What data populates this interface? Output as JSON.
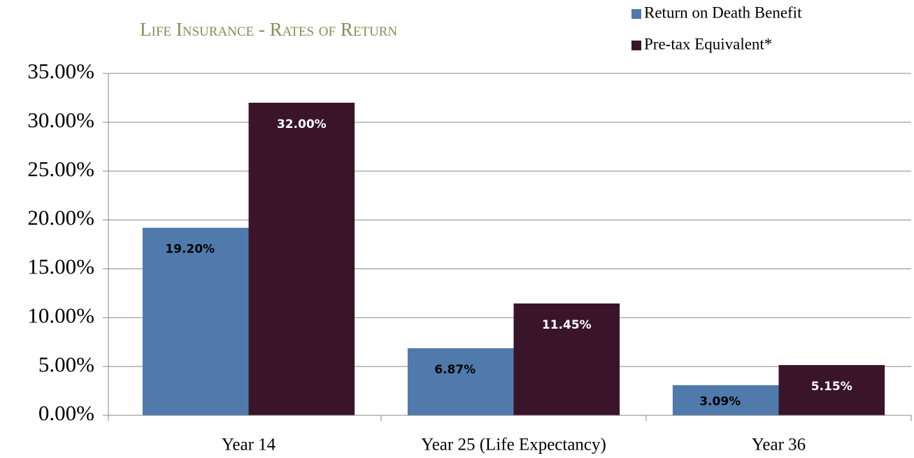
{
  "chart_data": {
    "type": "bar",
    "title": "Life Insurance - Rates of Return",
    "categories": [
      "Year 14",
      "Year 25 (Life Expectancy)",
      "Year 36"
    ],
    "series": [
      {
        "name": "Return on Death Benefit",
        "color": "#4f7aab",
        "values": [
          19.2,
          6.87,
          3.09
        ],
        "value_labels": [
          "19.20%",
          "6.87%",
          "3.09%"
        ]
      },
      {
        "name": "Pre-tax Equivalent*",
        "color": "#3a1429",
        "values": [
          32,
          11.45,
          5.15
        ],
        "value_labels": [
          "32.00%",
          "11.45%",
          "5.15%"
        ]
      }
    ],
    "ylim": [
      0,
      35
    ],
    "yticks": [
      {
        "value": 0,
        "label": "0.00%"
      },
      {
        "value": 5,
        "label": "5.00%"
      },
      {
        "value": 10,
        "label": "10.00%"
      },
      {
        "value": 15,
        "label": "15.00%"
      },
      {
        "value": 20,
        "label": "20.00%"
      },
      {
        "value": 25,
        "label": "25.00%"
      },
      {
        "value": 30,
        "label": "30.00%"
      },
      {
        "value": 35,
        "label": "35.00%"
      }
    ],
    "grid": true,
    "legend": "top-right"
  }
}
